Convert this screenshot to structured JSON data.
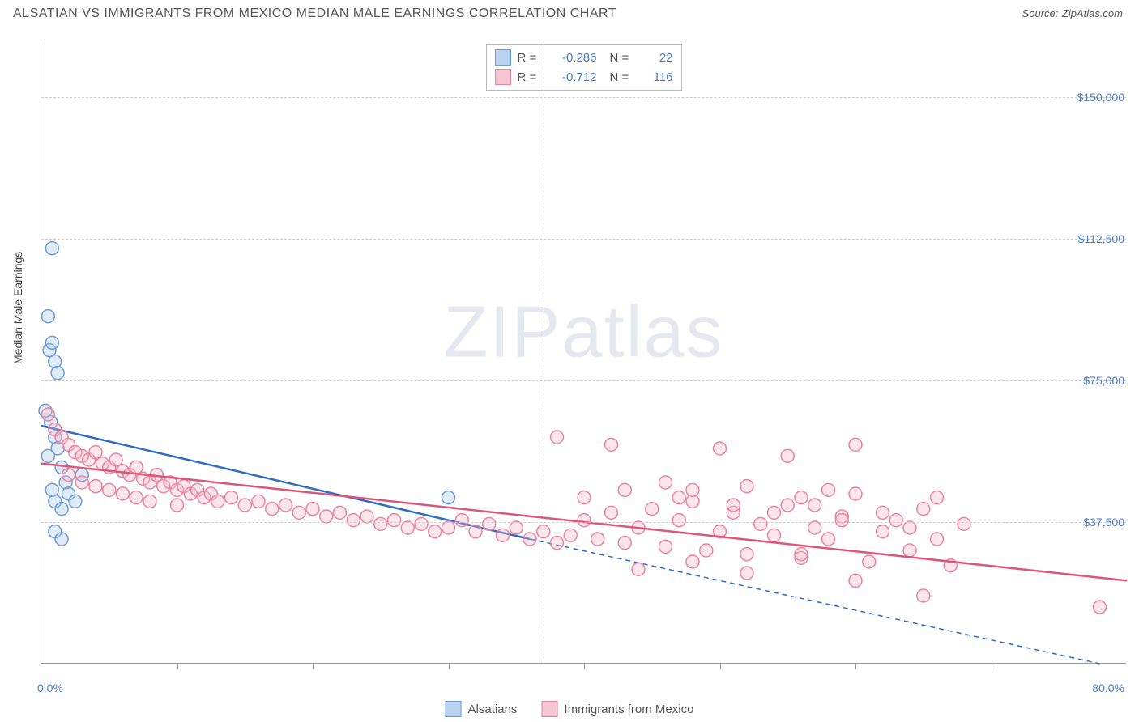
{
  "title": "ALSATIAN VS IMMIGRANTS FROM MEXICO MEDIAN MALE EARNINGS CORRELATION CHART",
  "source_label": "Source:",
  "source_name": "ZipAtlas.com",
  "ylabel": "Median Male Earnings",
  "watermark": "ZIPatlas",
  "chart": {
    "type": "scatter",
    "xlim": [
      0,
      80
    ],
    "ylim": [
      0,
      165000
    ],
    "x_axis_labels": {
      "start": "0.0%",
      "end": "80.0%"
    },
    "y_ticks": [
      {
        "v": 37500,
        "label": "$37,500"
      },
      {
        "v": 75000,
        "label": "$75,000"
      },
      {
        "v": 112500,
        "label": "$112,500"
      },
      {
        "v": 150000,
        "label": "$150,000"
      }
    ],
    "x_tick_positions": [
      10,
      20,
      30,
      40,
      50,
      60,
      70
    ],
    "x_grid_positions": [
      37
    ],
    "background_color": "#ffffff",
    "grid_color": "#cccccc",
    "axis_color": "#999999",
    "value_text_color": "#4a7bc8",
    "marker_radius": 8,
    "marker_stroke_width": 1.5,
    "marker_fill_opacity": 0.35,
    "trend_line_width": 2.5,
    "series": [
      {
        "name": "Alsatians",
        "R": "-0.286",
        "N": "22",
        "color_fill": "#a9c6ec",
        "color_stroke": "#6b9bd8",
        "line_color": "#2d6bc7",
        "trend": {
          "x1": 0,
          "y1": 63000,
          "x2": 36,
          "y2": 33000
        },
        "trend_ext": {
          "x1": 36,
          "y1": 33000,
          "x2": 78,
          "y2": 0
        },
        "points": [
          [
            0.8,
            110000
          ],
          [
            0.5,
            92000
          ],
          [
            0.6,
            83000
          ],
          [
            0.8,
            85000
          ],
          [
            1.0,
            80000
          ],
          [
            1.2,
            77000
          ],
          [
            0.3,
            67000
          ],
          [
            0.7,
            64000
          ],
          [
            1.0,
            60000
          ],
          [
            1.2,
            57000
          ],
          [
            0.5,
            55000
          ],
          [
            1.5,
            52000
          ],
          [
            1.8,
            48000
          ],
          [
            0.8,
            46000
          ],
          [
            1.0,
            43000
          ],
          [
            1.5,
            41000
          ],
          [
            2.0,
            45000
          ],
          [
            2.5,
            43000
          ],
          [
            1.0,
            35000
          ],
          [
            1.5,
            33000
          ],
          [
            30.0,
            44000
          ],
          [
            3.0,
            50000
          ]
        ]
      },
      {
        "name": "Immigrants from Mexico",
        "R": "-0.712",
        "N": "116",
        "color_fill": "#f5b8c8",
        "color_stroke": "#e8849f",
        "line_color": "#dd5577",
        "trend": {
          "x1": 0,
          "y1": 53000,
          "x2": 80,
          "y2": 22000
        },
        "points": [
          [
            0.5,
            66000
          ],
          [
            1.0,
            62000
          ],
          [
            1.5,
            60000
          ],
          [
            2.0,
            58000
          ],
          [
            2.5,
            56000
          ],
          [
            3.0,
            55000
          ],
          [
            3.5,
            54000
          ],
          [
            4.0,
            56000
          ],
          [
            4.5,
            53000
          ],
          [
            5.0,
            52000
          ],
          [
            5.5,
            54000
          ],
          [
            6.0,
            51000
          ],
          [
            6.5,
            50000
          ],
          [
            7.0,
            52000
          ],
          [
            7.5,
            49000
          ],
          [
            8.0,
            48000
          ],
          [
            8.5,
            50000
          ],
          [
            9.0,
            47000
          ],
          [
            9.5,
            48000
          ],
          [
            10.0,
            46000
          ],
          [
            10.5,
            47000
          ],
          [
            11.0,
            45000
          ],
          [
            11.5,
            46000
          ],
          [
            12.0,
            44000
          ],
          [
            12.5,
            45000
          ],
          [
            13.0,
            43000
          ],
          [
            14.0,
            44000
          ],
          [
            15.0,
            42000
          ],
          [
            16.0,
            43000
          ],
          [
            17.0,
            41000
          ],
          [
            18.0,
            42000
          ],
          [
            19.0,
            40000
          ],
          [
            20.0,
            41000
          ],
          [
            21.0,
            39000
          ],
          [
            22.0,
            40000
          ],
          [
            23.0,
            38000
          ],
          [
            24.0,
            39000
          ],
          [
            25.0,
            37000
          ],
          [
            26.0,
            38000
          ],
          [
            27.0,
            36000
          ],
          [
            28.0,
            37000
          ],
          [
            29.0,
            35000
          ],
          [
            30.0,
            36000
          ],
          [
            31.0,
            38000
          ],
          [
            32.0,
            35000
          ],
          [
            33.0,
            37000
          ],
          [
            34.0,
            34000
          ],
          [
            35.0,
            36000
          ],
          [
            36.0,
            33000
          ],
          [
            37.0,
            35000
          ],
          [
            38.0,
            32000
          ],
          [
            39.0,
            34000
          ],
          [
            40.0,
            38000
          ],
          [
            41.0,
            33000
          ],
          [
            42.0,
            40000
          ],
          [
            43.0,
            32000
          ],
          [
            44.0,
            36000
          ],
          [
            45.0,
            41000
          ],
          [
            46.0,
            31000
          ],
          [
            47.0,
            38000
          ],
          [
            48.0,
            43000
          ],
          [
            49.0,
            30000
          ],
          [
            50.0,
            35000
          ],
          [
            51.0,
            40000
          ],
          [
            52.0,
            29000
          ],
          [
            53.0,
            37000
          ],
          [
            54.0,
            34000
          ],
          [
            55.0,
            42000
          ],
          [
            56.0,
            28000
          ],
          [
            57.0,
            36000
          ],
          [
            58.0,
            33000
          ],
          [
            59.0,
            39000
          ],
          [
            60.0,
            45000
          ],
          [
            61.0,
            27000
          ],
          [
            62.0,
            35000
          ],
          [
            63.0,
            38000
          ],
          [
            64.0,
            30000
          ],
          [
            65.0,
            41000
          ],
          [
            66.0,
            33000
          ],
          [
            67.0,
            26000
          ],
          [
            68.0,
            37000
          ],
          [
            38.0,
            60000
          ],
          [
            42.0,
            58000
          ],
          [
            50.0,
            57000
          ],
          [
            55.0,
            55000
          ],
          [
            46.0,
            48000
          ],
          [
            48.0,
            46000
          ],
          [
            52.0,
            47000
          ],
          [
            56.0,
            44000
          ],
          [
            58.0,
            46000
          ],
          [
            60.0,
            58000
          ],
          [
            40.0,
            44000
          ],
          [
            43.0,
            46000
          ],
          [
            47.0,
            44000
          ],
          [
            51.0,
            42000
          ],
          [
            54.0,
            40000
          ],
          [
            57.0,
            42000
          ],
          [
            59.0,
            38000
          ],
          [
            62.0,
            40000
          ],
          [
            64.0,
            36000
          ],
          [
            66.0,
            44000
          ],
          [
            44.0,
            25000
          ],
          [
            48.0,
            27000
          ],
          [
            52.0,
            24000
          ],
          [
            56.0,
            29000
          ],
          [
            60.0,
            22000
          ],
          [
            78.0,
            15000
          ],
          [
            65.0,
            18000
          ],
          [
            3.0,
            48000
          ],
          [
            5.0,
            46000
          ],
          [
            7.0,
            44000
          ],
          [
            2.0,
            50000
          ],
          [
            4.0,
            47000
          ],
          [
            6.0,
            45000
          ],
          [
            8.0,
            43000
          ],
          [
            10.0,
            42000
          ]
        ]
      }
    ]
  }
}
